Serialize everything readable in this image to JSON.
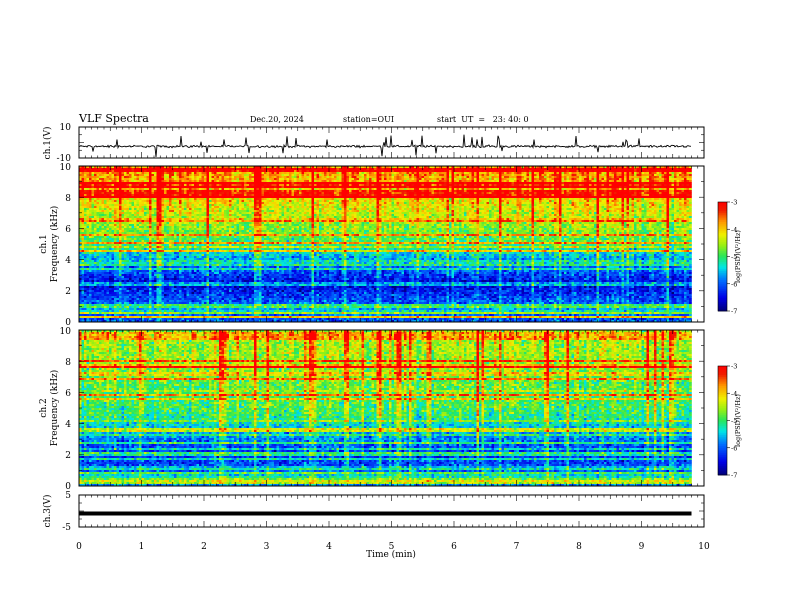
{
  "header": {
    "title": "VLF Spectra",
    "date": "Dec.20, 2024",
    "station": "station=OUI",
    "start_ut": "start  UT  =   23: 40: 0"
  },
  "chart_data": [
    {
      "type": "line",
      "id": "ch1-waveform",
      "ylabel": "ch.1(V)",
      "ylim": [
        -10,
        10
      ],
      "yticks": [
        "10",
        "-10"
      ],
      "xlim": [
        0,
        10
      ],
      "series": [
        {
          "x_range": [
            0,
            9.8
          ],
          "baseline": -2.5,
          "noise_amplitude": 1.2,
          "color": "#000000"
        }
      ]
    },
    {
      "type": "heatmap",
      "id": "ch1-spectrogram",
      "ylabel": "ch.1\nFrequency (kHz)",
      "ylim": [
        0,
        10
      ],
      "yticks": [
        "0",
        "2",
        "4",
        "6",
        "8",
        "10"
      ],
      "xlim": [
        0,
        10
      ],
      "x_data_range": [
        0,
        9.8
      ],
      "profile": [
        [
          0.0,
          -6.0
        ],
        [
          0.4,
          -6.2
        ],
        [
          0.6,
          -5.2
        ],
        [
          1.0,
          -5.9
        ],
        [
          1.5,
          -6.1
        ],
        [
          2.0,
          -6.3
        ],
        [
          2.4,
          -6.6
        ],
        [
          2.8,
          -6.3
        ],
        [
          3.3,
          -6.0
        ],
        [
          3.8,
          -5.8
        ],
        [
          4.3,
          -5.5
        ],
        [
          4.6,
          -5.2
        ],
        [
          5.5,
          -4.8
        ],
        [
          6.5,
          -4.5
        ],
        [
          7.5,
          -4.2
        ],
        [
          8.5,
          -3.9
        ],
        [
          10.0,
          -3.7
        ]
      ],
      "colorbar": {
        "label": "log(PSD)(V²/Hz)",
        "range": [
          -7,
          -3
        ],
        "ticks": [
          "-3",
          "-4",
          "-5",
          "-6",
          "-7"
        ]
      }
    },
    {
      "type": "heatmap",
      "id": "ch2-spectrogram",
      "ylabel": "ch.2\nFrequency (kHz)",
      "ylim": [
        0,
        10
      ],
      "yticks": [
        "0",
        "2",
        "4",
        "6",
        "8",
        "10"
      ],
      "xlim": [
        0,
        10
      ],
      "x_data_range": [
        0,
        9.8
      ],
      "profile": [
        [
          0.0,
          -5.8
        ],
        [
          0.6,
          -5.2
        ],
        [
          1.0,
          -6.0
        ],
        [
          1.8,
          -6.2
        ],
        [
          2.5,
          -6.1
        ],
        [
          3.0,
          -5.8
        ],
        [
          3.5,
          -5.6
        ],
        [
          4.0,
          -5.3
        ],
        [
          4.6,
          -5.0
        ],
        [
          5.5,
          -4.9
        ],
        [
          6.5,
          -4.8
        ],
        [
          7.5,
          -4.6
        ],
        [
          8.5,
          -4.5
        ],
        [
          10.0,
          -4.5
        ]
      ],
      "colorbar": {
        "label": "log(PSD)(V²/Hz)",
        "range": [
          -7,
          -3
        ],
        "ticks": [
          "-3",
          "-4",
          "-5",
          "-6",
          "-7"
        ]
      }
    },
    {
      "type": "line",
      "id": "ch3-waveform",
      "ylabel": "ch.3(V)",
      "ylim": [
        -5,
        5
      ],
      "yticks": [
        "5",
        "-5"
      ],
      "xlim": [
        0,
        10
      ],
      "xlabel": "Time (min)",
      "xticks": [
        "0",
        "1",
        "2",
        "3",
        "4",
        "5",
        "6",
        "7",
        "8",
        "9",
        "10"
      ],
      "series": [
        {
          "x_range": [
            0,
            9.8
          ],
          "baseline": -0.8,
          "color": "#000000"
        }
      ]
    }
  ]
}
